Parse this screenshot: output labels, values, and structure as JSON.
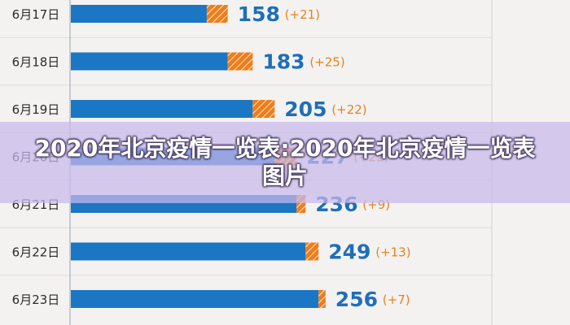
{
  "chart_data": {
    "type": "bar",
    "orientation": "horizontal",
    "stacked": true,
    "categories": [
      "6月17日",
      "6月18日",
      "6月19日",
      "6月20日",
      "6月21日",
      "6月22日",
      "6月23日"
    ],
    "series": [
      {
        "values": [
          137,
          158,
          183,
          205,
          227,
          236,
          249
        ]
      },
      {
        "values": [
          21,
          25,
          22,
          22,
          9,
          13,
          7
        ]
      }
    ],
    "totals": [
      "158",
      "183",
      "205",
      "227",
      "236",
      "249",
      "256"
    ],
    "increments": [
      "(+21)",
      "(+25)",
      "(+22)",
      "(+22)",
      "(+9)",
      "(+13)",
      "(+7)"
    ],
    "xlim": [
      0,
      310
    ],
    "grid": false,
    "colors": {
      "base": "#1b76c4",
      "increment": "#ef7d1a",
      "increment_stripe": "#ffffff",
      "total_label": "#1e6fb8",
      "increment_label": "#e8821c",
      "category_label": "#2b2b2b",
      "axis": "#9aa4ad",
      "separator": "#d9dadb"
    }
  },
  "overlay": {
    "title": "2020年北京疫情一览表:2020年北京疫情一览表图片"
  }
}
